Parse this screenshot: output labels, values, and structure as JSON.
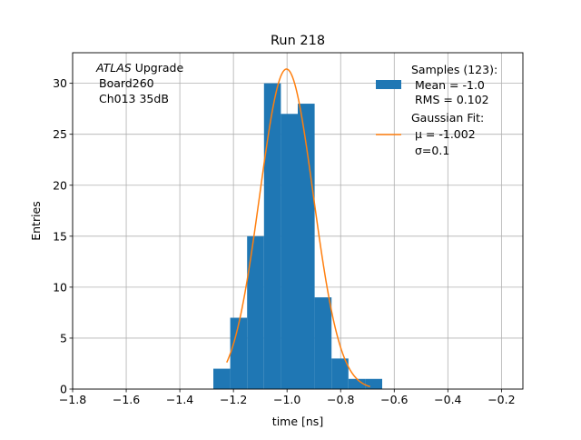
{
  "chart_data": {
    "type": "bar",
    "title": "Run 218",
    "xlabel": "time [ns]",
    "ylabel": "Entries",
    "xlim": [
      -1.8,
      -0.12
    ],
    "ylim": [
      0,
      33
    ],
    "xticks": [
      -1.8,
      -1.6,
      -1.4,
      -1.2,
      -1.0,
      -0.8,
      -0.6,
      -0.4,
      -0.2
    ],
    "xtick_labels": [
      "−1.8",
      "−1.6",
      "−1.4",
      "−1.2",
      "−1.0",
      "−0.8",
      "−0.6",
      "−0.4",
      "−0.2"
    ],
    "yticks": [
      0,
      5,
      10,
      15,
      20,
      25,
      30
    ],
    "ytick_labels": [
      "0",
      "5",
      "10",
      "15",
      "20",
      "25",
      "30"
    ],
    "grid": true,
    "legend_position": "top-right",
    "histogram": {
      "name": "Samples (123):",
      "color": "#1f77b4",
      "bin_edges": [
        -1.275,
        -1.212,
        -1.149,
        -1.086,
        -1.023,
        -0.96,
        -0.897,
        -0.834,
        -0.771,
        -0.708,
        -0.645
      ],
      "counts": [
        2,
        7,
        15,
        30,
        27,
        28,
        9,
        3,
        1,
        1
      ]
    },
    "fit": {
      "name": "Gaussian Fit:",
      "color": "#ff7f0e",
      "mu": -1.002,
      "sigma": 0.1,
      "amplitude": 31.4,
      "x_range": [
        -1.225,
        -0.69
      ]
    },
    "legend": {
      "samples_label": "Samples (123):",
      "samples_mean": "Mean = -1.0",
      "samples_rms": "RMS = 0.102",
      "fit_label": "Gaussian Fit:",
      "fit_mu": "μ = -1.002",
      "fit_sigma": "σ=0.1"
    },
    "annotation": {
      "experiment": "ATLAS",
      "experiment_suffix": " Upgrade",
      "board": "Board260",
      "channel": "Ch013 35dB"
    }
  }
}
